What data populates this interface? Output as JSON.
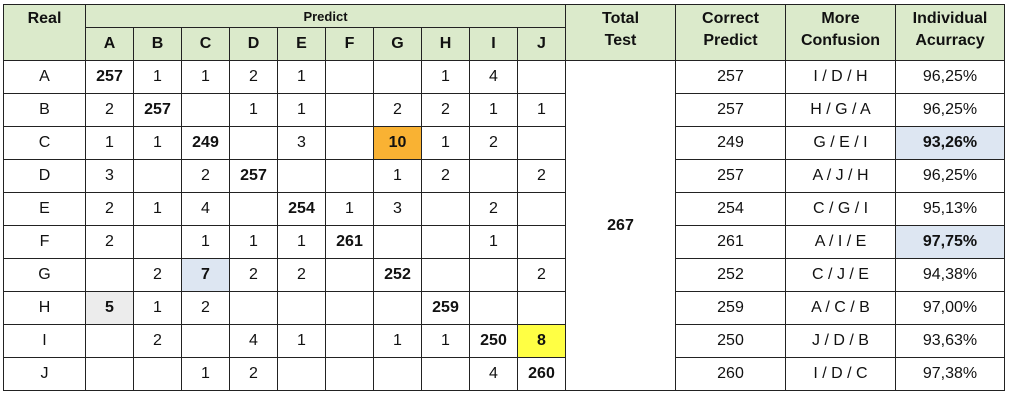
{
  "headers": {
    "real": "Real",
    "predict": "Predict",
    "total_test_line1": "Total",
    "total_test_line2": "Test",
    "correct_predict_line1": "Correct",
    "correct_predict_line2": "Predict",
    "more_confusion_line1": "More",
    "more_confusion_line2": "Confusion",
    "individual_accuracy_line1": "Individual",
    "individual_accuracy_line2": "Acurracy"
  },
  "columns": [
    "A",
    "B",
    "C",
    "D",
    "E",
    "F",
    "G",
    "H",
    "I",
    "J"
  ],
  "total_test": "267",
  "rows": [
    {
      "label": "A",
      "cells": [
        "257",
        "1",
        "1",
        "2",
        "1",
        "",
        "",
        "1",
        "4",
        ""
      ],
      "correct": "257",
      "confusion": "I / D / H",
      "accuracy": "96,25%"
    },
    {
      "label": "B",
      "cells": [
        "2",
        "257",
        "",
        "1",
        "1",
        "",
        "2",
        "2",
        "1",
        "1"
      ],
      "correct": "257",
      "confusion": "H / G / A",
      "accuracy": "96,25%"
    },
    {
      "label": "C",
      "cells": [
        "1",
        "1",
        "249",
        "",
        "3",
        "",
        "10",
        "1",
        "2",
        ""
      ],
      "correct": "249",
      "confusion": "G / E / I",
      "accuracy": "93,26%"
    },
    {
      "label": "D",
      "cells": [
        "3",
        "",
        "2",
        "257",
        "",
        "",
        "1",
        "2",
        "",
        "2"
      ],
      "correct": "257",
      "confusion": "A / J / H",
      "accuracy": "96,25%"
    },
    {
      "label": "E",
      "cells": [
        "2",
        "1",
        "4",
        "",
        "254",
        "1",
        "3",
        "",
        "2",
        ""
      ],
      "correct": "254",
      "confusion": "C / G / I",
      "accuracy": "95,13%"
    },
    {
      "label": "F",
      "cells": [
        "2",
        "",
        "1",
        "1",
        "1",
        "261",
        "",
        "",
        "1",
        ""
      ],
      "correct": "261",
      "confusion": "A / I / E",
      "accuracy": "97,75%"
    },
    {
      "label": "G",
      "cells": [
        "",
        "2",
        "7",
        "2",
        "2",
        "",
        "252",
        "",
        "",
        "2"
      ],
      "correct": "252",
      "confusion": "C / J / E",
      "accuracy": "94,38%"
    },
    {
      "label": "H",
      "cells": [
        "5",
        "1",
        "2",
        "",
        "",
        "",
        "",
        "259",
        "",
        ""
      ],
      "correct": "259",
      "confusion": "A / C / B",
      "accuracy": "97,00%"
    },
    {
      "label": "I",
      "cells": [
        "",
        "2",
        "",
        "4",
        "1",
        "",
        "1",
        "1",
        "250",
        "8"
      ],
      "correct": "250",
      "confusion": "J / D / B",
      "accuracy": "93,63%"
    },
    {
      "label": "J",
      "cells": [
        "",
        "",
        "1",
        "2",
        "",
        "",
        "",
        "",
        "4",
        "260"
      ],
      "correct": "260",
      "confusion": "I / D / C",
      "accuracy": "97,38%"
    }
  ],
  "highlight_cells": [
    {
      "row": 2,
      "col": 6,
      "style": "orange"
    },
    {
      "row": 8,
      "col": 9,
      "style": "yellow"
    },
    {
      "row": 6,
      "col": 2,
      "style": "blue"
    },
    {
      "row": 7,
      "col": 0,
      "style": "gray"
    }
  ],
  "highlight_accuracy_rows": [
    2,
    5
  ],
  "colors": {
    "header_bg": "#dbeacb",
    "diagonal_text": "#e0131a",
    "orange": "#f9b233",
    "yellow": "#ffff44",
    "blue": "#dde6f2",
    "gray": "#ececec"
  }
}
